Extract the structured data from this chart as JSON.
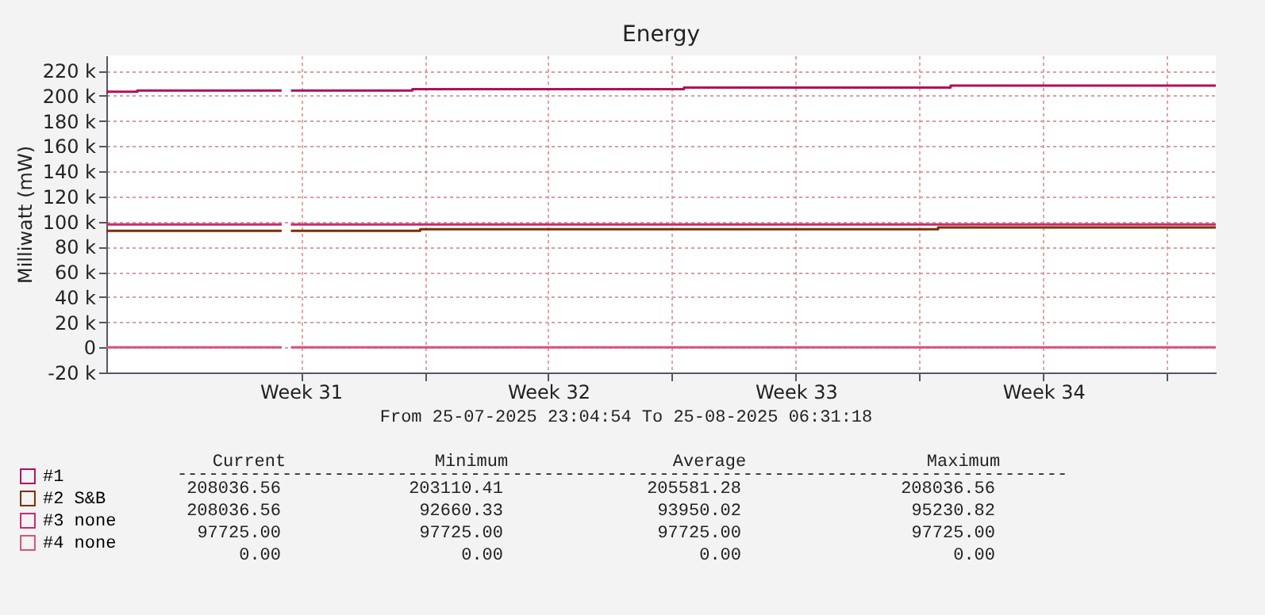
{
  "chart_data": {
    "type": "step",
    "title": "Energy",
    "ylabel": "Milliwatt (mW)",
    "xlim": [
      "2025-07-26T00:00",
      "2025-08-26T09:00"
    ],
    "xticks": [
      {
        "value": "2025-07-31T12:00",
        "label": "Week 31"
      },
      {
        "value": "2025-08-04T00:00",
        "label": null
      },
      {
        "value": "2025-08-07T12:00",
        "label": "Week 32"
      },
      {
        "value": "2025-08-11T00:00",
        "label": null
      },
      {
        "value": "2025-08-14T12:00",
        "label": "Week 33"
      },
      {
        "value": "2025-08-18T00:00",
        "label": null
      },
      {
        "value": "2025-08-21T12:00",
        "label": "Week 34"
      },
      {
        "value": "2025-08-25T00:00",
        "label": null
      }
    ],
    "ylim": [
      -20000,
      232000
    ],
    "yticks": [
      {
        "value": -20000,
        "label": "-20 k"
      },
      0,
      {
        "value": 20000,
        "label": "20 k"
      },
      {
        "value": 40000,
        "label": "40 k"
      },
      {
        "value": 60000,
        "label": "60 k"
      },
      {
        "value": 80000,
        "label": "80 k"
      },
      {
        "value": 100000,
        "label": "100 k"
      },
      {
        "value": 120000,
        "label": "120 k"
      },
      {
        "value": 140000,
        "label": "140 k"
      },
      {
        "value": 160000,
        "label": "160 k"
      },
      {
        "value": 180000,
        "label": "180 k"
      },
      {
        "value": 200000,
        "label": "200 k"
      },
      {
        "value": 220000,
        "label": "220 k"
      }
    ],
    "grid": true,
    "legend": "bottom left",
    "series": [
      {
        "name": "#1",
        "color": "#b0105a",
        "x": [
          "2025-07-26T00:00",
          "2025-07-26T21:00",
          "2025-07-30T23:00",
          "2025-07-31T02:00",
          "2025-07-31T05:15",
          "2025-08-03T15:40",
          "2025-08-11T08:00",
          "2025-08-18T21:00",
          "2025-08-26T09:00"
        ],
        "values": [
          203110,
          204200,
          204200,
          null,
          204200,
          205300,
          206500,
          208036,
          208036
        ]
      },
      {
        "name": "#2 S&B",
        "color": "#7a3000",
        "x": [
          "2025-07-26T00:00",
          "2025-07-30T23:00",
          "2025-07-31T02:00",
          "2025-07-31T05:15",
          "2025-08-03T21:00",
          "2025-08-18T12:30",
          "2025-08-26T09:00"
        ],
        "values": [
          92660,
          92660,
          null,
          92660,
          93950,
          95230,
          95230
        ]
      },
      {
        "name": "#3 none",
        "color": "#cc2a6e",
        "x": [
          "2025-07-26T00:00",
          "2025-07-30T23:00",
          "2025-07-31T02:00",
          "2025-07-31T05:15",
          "2025-08-26T09:00"
        ],
        "values": [
          97725,
          97725,
          null,
          97725,
          97725
        ]
      },
      {
        "name": "#4 none",
        "color": "#d8527e",
        "x": [
          "2025-07-26T00:00",
          "2025-07-30T23:00",
          "2025-07-31T02:00",
          "2025-07-31T05:15",
          "2025-08-26T09:00"
        ],
        "values": [
          0,
          0,
          null,
          0,
          0
        ]
      }
    ],
    "annotations": [
      "From 25-07-2025 23:04:54 To 25-08-2025 06:31:18",
      "Current",
      "Minimum",
      "Average",
      "Maximum",
      "-------------------------------------------------------------------------------------",
      "208036.56",
      "203110.41",
      "205581.28",
      "208036.56",
      "208036.56",
      "92660.33",
      "93950.02",
      "95230.82",
      "97725.00",
      "97725.00",
      "97725.00",
      "97725.00",
      "0.00",
      "0.00",
      "0.00",
      "0.00"
    ]
  }
}
